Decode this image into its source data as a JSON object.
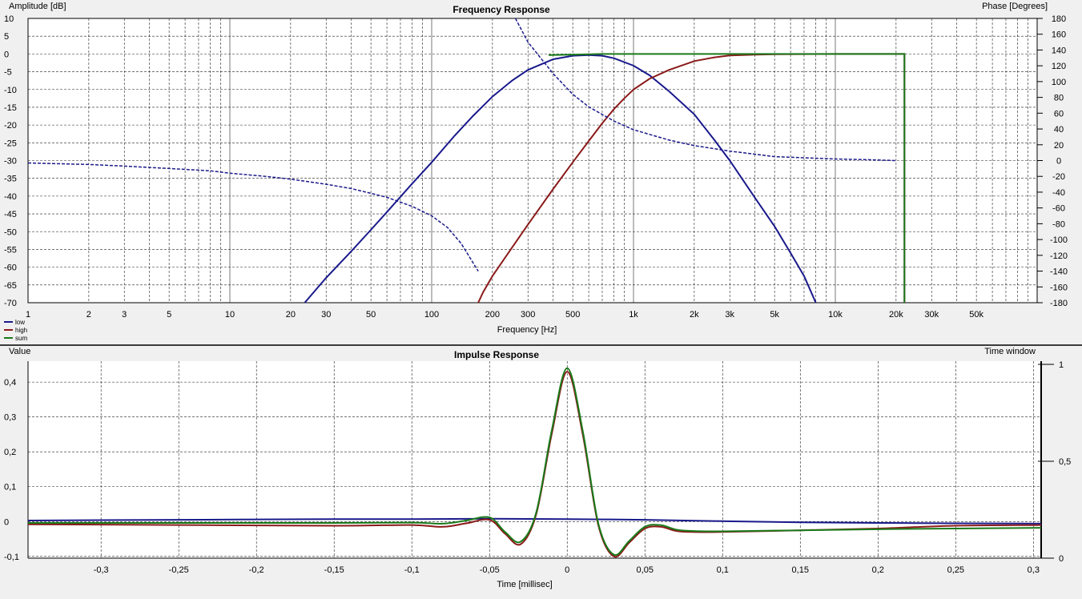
{
  "colors": {
    "low": "#1a1a8c",
    "high": "#8b1a1a",
    "sum": "#1a7a1a",
    "grid": "#202020",
    "bg": "#ffffff"
  },
  "chart_data": [
    {
      "type": "line",
      "title": "Frequency Response",
      "xlabel": "Frequency [Hz]",
      "ylabel": "Amplitude [dB]",
      "y2label": "Phase [Degrees]",
      "xscale": "log",
      "xlim": [
        1,
        100000
      ],
      "ylim": [
        -70,
        10
      ],
      "y2lim": [
        -180,
        180
      ],
      "x_tick_labels": [
        {
          "v": 1,
          "t": "1"
        },
        {
          "v": 2,
          "t": "2"
        },
        {
          "v": 3,
          "t": "3"
        },
        {
          "v": 5,
          "t": "5"
        },
        {
          "v": 10,
          "t": "10"
        },
        {
          "v": 20,
          "t": "20"
        },
        {
          "v": 30,
          "t": "30"
        },
        {
          "v": 50,
          "t": "50"
        },
        {
          "v": 100,
          "t": "100"
        },
        {
          "v": 200,
          "t": "200"
        },
        {
          "v": 300,
          "t": "300"
        },
        {
          "v": 500,
          "t": "500"
        },
        {
          "v": 1000,
          "t": "1k"
        },
        {
          "v": 2000,
          "t": "2k"
        },
        {
          "v": 3000,
          "t": "3k"
        },
        {
          "v": 5000,
          "t": "5k"
        },
        {
          "v": 10000,
          "t": "10k"
        },
        {
          "v": 20000,
          "t": "20k"
        },
        {
          "v": 30000,
          "t": "30k"
        },
        {
          "v": 50000,
          "t": "50k"
        }
      ],
      "y_tick_labels": [
        "10",
        "5",
        "0",
        "-5",
        "-10",
        "-15",
        "-20",
        "-25",
        "-30",
        "-35",
        "-40",
        "-45",
        "-50",
        "-55",
        "-60",
        "-65",
        "-70"
      ],
      "y2_tick_labels": [
        "180",
        "160",
        "140",
        "120",
        "100",
        "80",
        "60",
        "40",
        "20",
        "0",
        "-20",
        "-40",
        "-60",
        "-80",
        "-100",
        "-120",
        "-140",
        "-160",
        "-180"
      ],
      "legend": [
        "low",
        "high",
        "sum"
      ],
      "legend_position": "bottom-left",
      "grid": true,
      "series": [
        {
          "name": "low",
          "style": "amplitude",
          "color_key": "low",
          "x": [
            23.5,
            30,
            40,
            50,
            60,
            80,
            100,
            130,
            160,
            200,
            250,
            300,
            400,
            500,
            600,
            700,
            800,
            1000,
            1200,
            1500,
            2000,
            2500,
            3000,
            4000,
            5000,
            6000,
            7000,
            8000
          ],
          "y": [
            -70,
            -63,
            -55.5,
            -49.5,
            -44.5,
            -36.5,
            -30.5,
            -23,
            -17.5,
            -12,
            -7.5,
            -4.5,
            -1.5,
            -0.5,
            -0.3,
            -0.5,
            -1.2,
            -3.3,
            -6,
            -10.5,
            -17,
            -24,
            -30,
            -40.5,
            -48.5,
            -56,
            -62.5,
            -70
          ]
        },
        {
          "name": "low",
          "style": "phase",
          "color_key": "low",
          "x": [
            1,
            2,
            3,
            5,
            8,
            10,
            15,
            20,
            30,
            40,
            50,
            60,
            80,
            100,
            120,
            140,
            170
          ],
          "y": [
            -3,
            -5,
            -7,
            -10,
            -13,
            -16,
            -20,
            -23.5,
            -30,
            -35.5,
            -41.5,
            -46.5,
            -58,
            -70,
            -85,
            -105,
            -140
          ]
        },
        {
          "name": "high",
          "style": "amplitude",
          "color_key": "high",
          "x": [
            170,
            180,
            200,
            250,
            300,
            400,
            500,
            600,
            700,
            800,
            900,
            1000,
            1200,
            1500,
            2000,
            2500,
            3000,
            4000,
            5000,
            10000,
            22000,
            22001
          ],
          "y": [
            -70,
            -67,
            -62.5,
            -54.5,
            -48,
            -38,
            -30.5,
            -24.5,
            -19.5,
            -15.5,
            -12.5,
            -10,
            -7,
            -4.5,
            -2,
            -1,
            -0.4,
            -0.2,
            -0.1,
            0,
            0,
            -70
          ]
        },
        {
          "name": "high",
          "style": "phase",
          "color_key": "low",
          "dashed": true,
          "x": [
            260,
            300,
            400,
            500,
            600,
            800,
            1000,
            1500,
            2000,
            3000,
            5000,
            10000,
            15000,
            20000
          ],
          "y": [
            180,
            150,
            110,
            84,
            68,
            50,
            39,
            26,
            19,
            12,
            5,
            2,
            1,
            0
          ]
        },
        {
          "name": "sum",
          "style": "amplitude",
          "color_key": "sum",
          "x": [
            380,
            500,
            700,
            1000,
            2000,
            3000,
            5000,
            10000,
            22000,
            22001
          ],
          "y": [
            -0.3,
            -0.2,
            0,
            0,
            0,
            0,
            0,
            0,
            0,
            -70
          ]
        }
      ]
    },
    {
      "type": "line",
      "title": "Impulse Response",
      "xlabel": "Time [millisec]",
      "ylabel": "Value",
      "y2label": "Time window",
      "xlim": [
        -0.347,
        0.305
      ],
      "ylim": [
        -0.105,
        0.46
      ],
      "y2lim": [
        0,
        1
      ],
      "x_tick_labels": [
        "-0,3",
        "-0,25",
        "-0,2",
        "-0,15",
        "-0,1",
        "-0,05",
        "0",
        "0,05",
        "0,1",
        "0,15",
        "0,2",
        "0,25",
        "0,3"
      ],
      "x_tick_values": [
        -0.3,
        -0.25,
        -0.2,
        -0.15,
        -0.1,
        -0.05,
        0,
        0.05,
        0.1,
        0.15,
        0.2,
        0.25,
        0.3
      ],
      "y_tick_labels": [
        "0,4",
        "0,3",
        "0,2",
        "0,1",
        "0",
        "-0,1"
      ],
      "y_tick_values": [
        0.4,
        0.3,
        0.2,
        0.1,
        0,
        -0.1
      ],
      "y2_tick_labels": [
        "1",
        "0,5",
        "0"
      ],
      "y2_tick_values": [
        1,
        0.5,
        0
      ],
      "grid": true,
      "series": [
        {
          "name": "low",
          "color_key": "low",
          "x": [
            -0.347,
            -0.25,
            -0.15,
            -0.1,
            -0.05,
            0,
            0.05,
            0.1,
            0.15,
            0.2,
            0.25,
            0.305
          ],
          "y": [
            0.003,
            0.005,
            0.007,
            0.007,
            0.008,
            0.007,
            0.005,
            0.001,
            -0.002,
            -0.004,
            -0.005,
            -0.006
          ]
        },
        {
          "name": "high",
          "color_key": "high",
          "x": [
            -0.347,
            -0.25,
            -0.15,
            -0.1,
            -0.08,
            -0.065,
            -0.05,
            -0.04,
            -0.03,
            -0.02,
            -0.01,
            0,
            0.01,
            0.02,
            0.03,
            0.04,
            0.05,
            0.06,
            0.07,
            0.08,
            0.1,
            0.15,
            0.2,
            0.25,
            0.305
          ],
          "y": [
            -0.008,
            -0.01,
            -0.012,
            -0.01,
            -0.015,
            -0.005,
            0.005,
            -0.035,
            -0.065,
            0.02,
            0.25,
            0.43,
            0.25,
            -0.01,
            -0.1,
            -0.06,
            -0.02,
            -0.015,
            -0.027,
            -0.03,
            -0.03,
            -0.025,
            -0.02,
            -0.012,
            -0.01
          ]
        },
        {
          "name": "sum",
          "color_key": "sum",
          "x": [
            -0.347,
            -0.25,
            -0.15,
            -0.1,
            -0.08,
            -0.065,
            -0.05,
            -0.04,
            -0.03,
            -0.02,
            -0.01,
            0,
            0.01,
            0.02,
            0.03,
            0.04,
            0.05,
            0.06,
            0.07,
            0.08,
            0.1,
            0.15,
            0.2,
            0.25,
            0.305
          ],
          "y": [
            -0.004,
            -0.004,
            -0.004,
            -0.003,
            -0.006,
            0.003,
            0.012,
            -0.03,
            -0.058,
            0.025,
            0.26,
            0.44,
            0.26,
            -0.005,
            -0.095,
            -0.055,
            -0.015,
            -0.01,
            -0.023,
            -0.027,
            -0.028,
            -0.025,
            -0.022,
            -0.02,
            -0.018
          ]
        }
      ]
    }
  ]
}
